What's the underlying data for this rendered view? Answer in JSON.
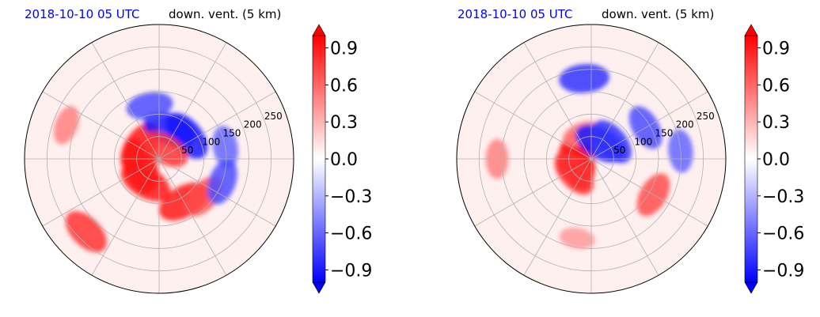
{
  "figure": {
    "panels": [
      {
        "title_left": "2018-10-10 05 UTC",
        "title_right": "down. vent. (5 km)"
      },
      {
        "title_left": "2018-10-10 05 UTC",
        "title_right": "down. vent. (5 km)"
      }
    ]
  },
  "colors": {
    "title_left": "#0000ff",
    "title_right": "#000000",
    "positive": "#ff0000",
    "negative": "#0000ff",
    "near_zero": "#ffffff",
    "grid": "#b0b0b0"
  },
  "chart_data": [
    {
      "type": "heatmap",
      "projection": "polar",
      "title": "2018-10-10 05 UTC  down. vent. (5 km)",
      "radial_ticks": [
        50,
        100,
        150,
        200,
        250
      ],
      "radial_tick_labels": [
        "50",
        "100",
        "150",
        "200",
        "250"
      ],
      "angular_gridlines_deg": [
        0,
        30,
        60,
        90,
        120,
        150,
        180,
        210,
        240,
        270,
        300,
        330
      ],
      "grid": true,
      "colorbar": {
        "vmin": -1.0,
        "vmax": 1.0,
        "extend": "both",
        "levels_step": 0.1,
        "ticks": [
          0.9,
          0.6,
          0.3,
          0.0,
          -0.3,
          -0.6,
          -0.9
        ],
        "tick_labels": [
          "0.9",
          "0.6",
          "0.3",
          "0.0",
          "−0.3",
          "−0.6",
          "−0.9"
        ],
        "cmap": "bwr"
      },
      "features": [
        {
          "r": 45,
          "theta": 200,
          "value": 1.0
        },
        {
          "r": 60,
          "theta": 240,
          "value": 0.9
        },
        {
          "r": 50,
          "theta": 150,
          "value": 0.9
        },
        {
          "r": 110,
          "theta": 300,
          "value": 0.9
        },
        {
          "r": 130,
          "theta": 320,
          "value": 0.7
        },
        {
          "r": 230,
          "theta": 225,
          "value": 0.8
        },
        {
          "r": 220,
          "theta": 160,
          "value": 0.5
        },
        {
          "r": 70,
          "theta": 70,
          "value": -0.9
        },
        {
          "r": 80,
          "theta": 40,
          "value": -0.9
        },
        {
          "r": 120,
          "theta": 100,
          "value": -0.7
        },
        {
          "r": 150,
          "theta": 10,
          "value": -0.6
        },
        {
          "r": 150,
          "theta": 340,
          "value": -0.7
        },
        {
          "r": 25,
          "theta": 60,
          "value": 0.8
        }
      ]
    },
    {
      "type": "heatmap",
      "projection": "polar",
      "title": "2018-10-10 05 UTC  down. vent. (5 km)",
      "radial_ticks": [
        50,
        100,
        150,
        200,
        250
      ],
      "radial_tick_labels": [
        "50",
        "100",
        "150",
        "200",
        "250"
      ],
      "angular_gridlines_deg": [
        0,
        30,
        60,
        90,
        120,
        150,
        180,
        210,
        240,
        270,
        300,
        330
      ],
      "grid": true,
      "colorbar": {
        "vmin": -1.0,
        "vmax": 1.0,
        "extend": "both",
        "levels_step": 0.1,
        "ticks": [
          0.9,
          0.6,
          0.3,
          0.0,
          -0.3,
          -0.6,
          -0.9
        ],
        "tick_labels": [
          "0.9",
          "0.6",
          "0.3",
          "0.0",
          "−0.3",
          "−0.6",
          "−0.9"
        ],
        "cmap": "bwr"
      },
      "features": [
        {
          "r": 30,
          "theta": 190,
          "value": 1.0
        },
        {
          "r": 40,
          "theta": 160,
          "value": 0.9
        },
        {
          "r": 50,
          "theta": 220,
          "value": 0.8
        },
        {
          "r": 60,
          "theta": 110,
          "value": 0.5
        },
        {
          "r": 160,
          "theta": 330,
          "value": 0.7
        },
        {
          "r": 180,
          "theta": 260,
          "value": 0.4
        },
        {
          "r": 210,
          "theta": 180,
          "value": 0.5
        },
        {
          "r": 40,
          "theta": 60,
          "value": -0.9
        },
        {
          "r": 60,
          "theta": 40,
          "value": -0.8
        },
        {
          "r": 180,
          "theta": 95,
          "value": -0.8
        },
        {
          "r": 140,
          "theta": 30,
          "value": -0.7
        },
        {
          "r": 200,
          "theta": 5,
          "value": -0.6
        }
      ]
    }
  ]
}
